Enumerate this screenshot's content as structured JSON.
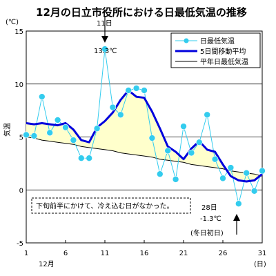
{
  "chart_data": {
    "type": "line",
    "title": "12月の日立市役所における日最低気温の推移",
    "ylabel": "気温",
    "y_unit": "(℃)",
    "x_unit": "(日)",
    "month_label": "12月",
    "ylim": [
      -5,
      15
    ],
    "xlim": [
      1,
      31
    ],
    "y_ticks": [
      "-5",
      "0",
      "5",
      "10",
      "15"
    ],
    "x_ticks": [
      "1",
      "6",
      "11",
      "16",
      "21",
      "26",
      "31"
    ],
    "x": [
      1,
      2,
      3,
      4,
      5,
      6,
      7,
      8,
      9,
      10,
      11,
      12,
      13,
      14,
      15,
      16,
      17,
      18,
      19,
      20,
      21,
      22,
      23,
      24,
      25,
      26,
      27,
      28,
      29,
      30,
      31
    ],
    "series": [
      {
        "name": "日最低気温",
        "color": "#33ccee",
        "values": [
          5.2,
          5.1,
          8.8,
          5.4,
          6.6,
          5.9,
          4.7,
          3.0,
          3.0,
          5.8,
          13.3,
          7.8,
          7.1,
          9.4,
          9.6,
          9.4,
          4.9,
          1.5,
          3.7,
          1.0,
          6.0,
          3.5,
          4.5,
          7.1,
          2.9,
          1.1,
          2.1,
          -1.3,
          1.6,
          -0.1,
          1.8
        ]
      },
      {
        "name": "5日間移動平均",
        "color": "#0000dd",
        "values": [
          6.3,
          6.2,
          6.3,
          6.2,
          6.1,
          6.3,
          5.7,
          4.7,
          4.5,
          5.9,
          6.5,
          7.3,
          8.5,
          9.4,
          8.8,
          8.7,
          7.4,
          5.8,
          4.1,
          3.6,
          2.9,
          3.9,
          4.6,
          3.8,
          3.6,
          2.4,
          1.3,
          0.9,
          0.8,
          0.9,
          1.5
        ]
      },
      {
        "name": "平年日最低気温",
        "color": "#000000",
        "values": [
          5.0,
          4.9,
          4.7,
          4.6,
          4.5,
          4.4,
          4.3,
          4.1,
          4.0,
          3.9,
          3.8,
          3.7,
          3.5,
          3.4,
          3.3,
          3.2,
          3.1,
          2.9,
          2.8,
          2.7,
          2.6,
          2.4,
          2.3,
          2.2,
          2.1,
          2.0,
          1.8,
          1.7,
          1.6,
          1.5,
          1.3
        ]
      }
    ],
    "fill_color": "#ffffcc",
    "grid": true,
    "legend_position": "top-right",
    "annotations": {
      "peak_day": "11日",
      "peak_value": "13.3℃",
      "low_day": "28日",
      "low_value": "-1.3℃",
      "low_note": "(冬日初日)",
      "box_text": "下旬前半にかけて、冷え込む日がなかった。"
    }
  }
}
